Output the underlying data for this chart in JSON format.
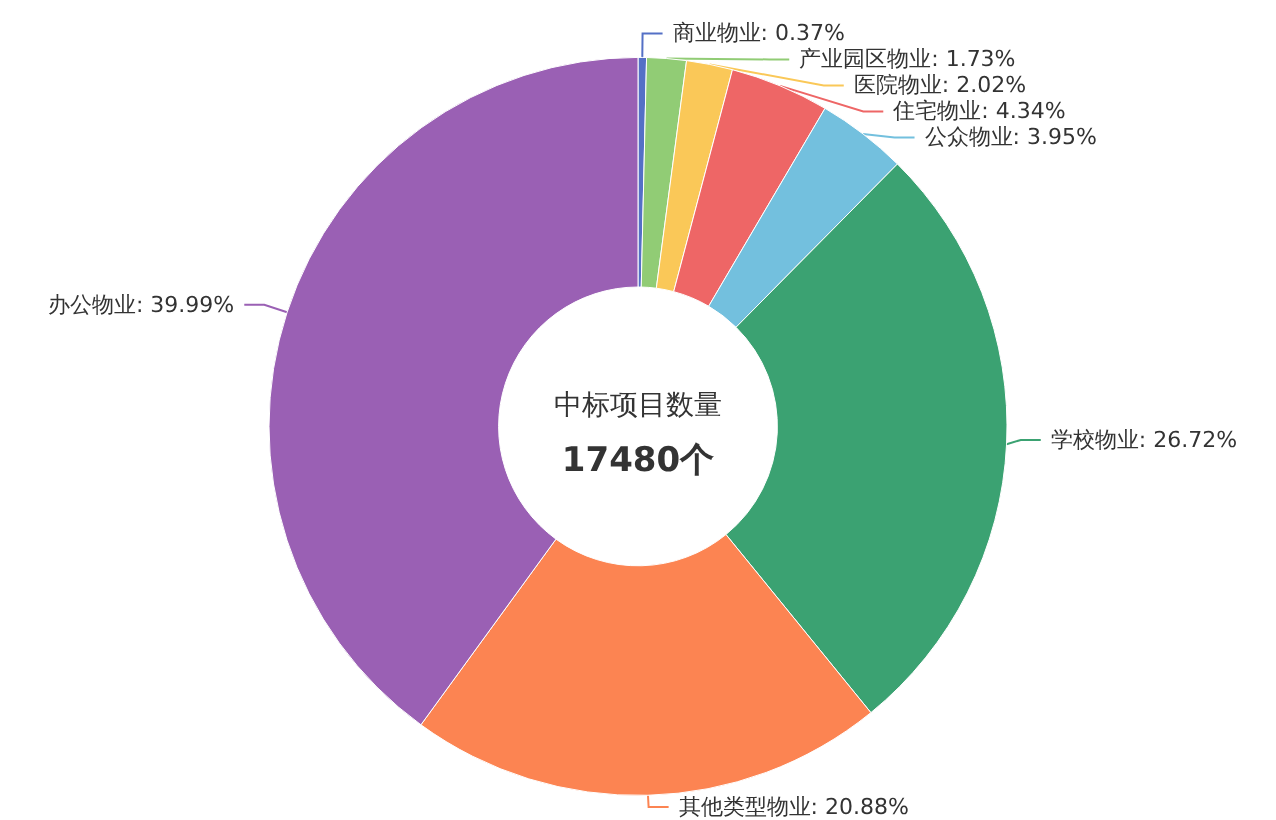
{
  "chart_data": {
    "type": "donut",
    "categories": [
      "商业物业",
      "产业园区物业",
      "医院物业",
      "住宅物业",
      "公众物业",
      "学校物业",
      "其他类型物业",
      "办公物业"
    ],
    "values": [
      0.37,
      1.73,
      2.02,
      4.34,
      3.95,
      26.72,
      20.88,
      39.99
    ],
    "value_labels": [
      "0.37%",
      "1.73%",
      "2.02%",
      "4.34%",
      "3.95%",
      "26.72%",
      "20.88%",
      "39.99%"
    ],
    "colors": [
      "#5470c6",
      "#91cc75",
      "#fac858",
      "#ee6666",
      "#73c0de",
      "#3ba272",
      "#fc8452",
      "#9a60b4"
    ],
    "annotations": [
      "中标项目数量",
      "17480个"
    ],
    "legend": false
  }
}
